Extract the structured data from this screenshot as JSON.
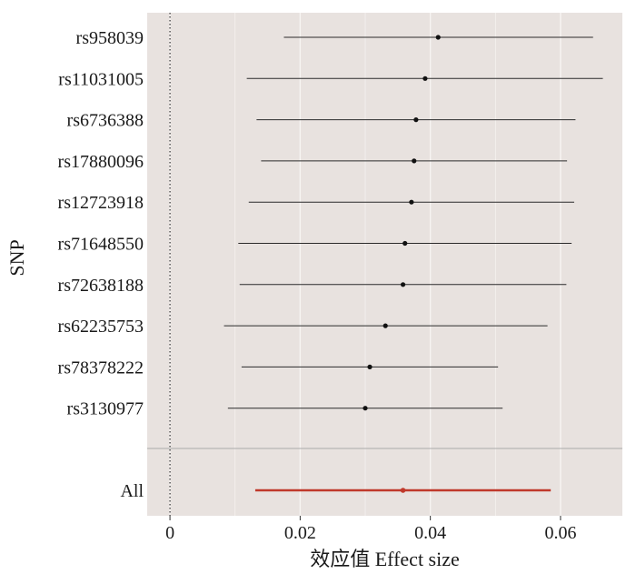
{
  "chart_data": {
    "type": "scatter",
    "subtype": "forest-plot",
    "xlabel": "效应值 Effect size",
    "ylabel": "SNP",
    "xlim": [
      -0.0035,
      0.0695
    ],
    "x_ticks": [
      0,
      0.02,
      0.04,
      0.06
    ],
    "x_tick_labels": [
      "0",
      "0.02",
      "0.04",
      "0.06"
    ],
    "grid": true,
    "reference_line_x": 0,
    "panel_background": "#e8e2df",
    "snps": [
      {
        "label": "rs958039",
        "estimate": 0.0412,
        "lower": 0.0175,
        "upper": 0.065
      },
      {
        "label": "rs11031005",
        "estimate": 0.0392,
        "lower": 0.0118,
        "upper": 0.0665
      },
      {
        "label": "rs6736388",
        "estimate": 0.0378,
        "lower": 0.0133,
        "upper": 0.0623
      },
      {
        "label": "rs17880096",
        "estimate": 0.0375,
        "lower": 0.014,
        "upper": 0.061
      },
      {
        "label": "rs12723918",
        "estimate": 0.0371,
        "lower": 0.0121,
        "upper": 0.0621
      },
      {
        "label": "rs71648550",
        "estimate": 0.0361,
        "lower": 0.0105,
        "upper": 0.0617
      },
      {
        "label": "rs72638188",
        "estimate": 0.0358,
        "lower": 0.0107,
        "upper": 0.0609
      },
      {
        "label": "rs62235753",
        "estimate": 0.0331,
        "lower": 0.0083,
        "upper": 0.058
      },
      {
        "label": "rs78378222",
        "estimate": 0.0307,
        "lower": 0.011,
        "upper": 0.0504
      },
      {
        "label": "rs3130977",
        "estimate": 0.03,
        "lower": 0.0089,
        "upper": 0.0511
      }
    ],
    "overall": {
      "label": "All",
      "estimate": 0.0358,
      "lower": 0.0131,
      "upper": 0.0585
    },
    "colors": {
      "snp_line": "#2b2b2b",
      "snp_point": "#111111",
      "overall": "#c0392b",
      "grid": "#f7f4f2",
      "separator": "#aaaaaa",
      "zero_line": "#333333"
    }
  }
}
